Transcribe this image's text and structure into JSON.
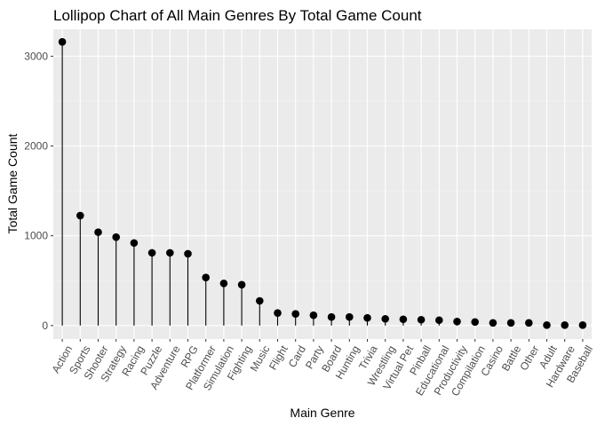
{
  "chart_data": {
    "type": "lollipop",
    "title": "Lollipop Chart of All Main Genres By Total Game Count",
    "xlabel": "Main Genre",
    "ylabel": "Total Game Count",
    "ylim": [
      -150,
      3300
    ],
    "yticks": [
      0,
      1000,
      2000,
      3000
    ],
    "grid": true,
    "categories": [
      "Action",
      "Sports",
      "Shooter",
      "Strategy",
      "Racing",
      "Puzzle",
      "Adventure",
      "RPG",
      "Platformer",
      "Simulation",
      "Fighting",
      "Music",
      "Flight",
      "Card",
      "Party",
      "Board",
      "Hunting",
      "Trivia",
      "Wrestling",
      "Virtual Pet",
      "Pinball",
      "Educational",
      "Productivity",
      "Compilation",
      "Casino",
      "Battle",
      "Other",
      "Adult",
      "Hardware",
      "Baseball"
    ],
    "values": [
      3160,
      1225,
      1040,
      985,
      920,
      810,
      810,
      800,
      535,
      470,
      455,
      275,
      140,
      130,
      115,
      95,
      95,
      85,
      75,
      70,
      65,
      60,
      45,
      40,
      30,
      30,
      30,
      5,
      5,
      5
    ],
    "colors": {
      "panel": "#ebebeb",
      "grid_major": "#ffffff",
      "grid_minor": "#f5f5f5",
      "mark": "#000000",
      "tick_text": "#4d4d4d"
    }
  }
}
